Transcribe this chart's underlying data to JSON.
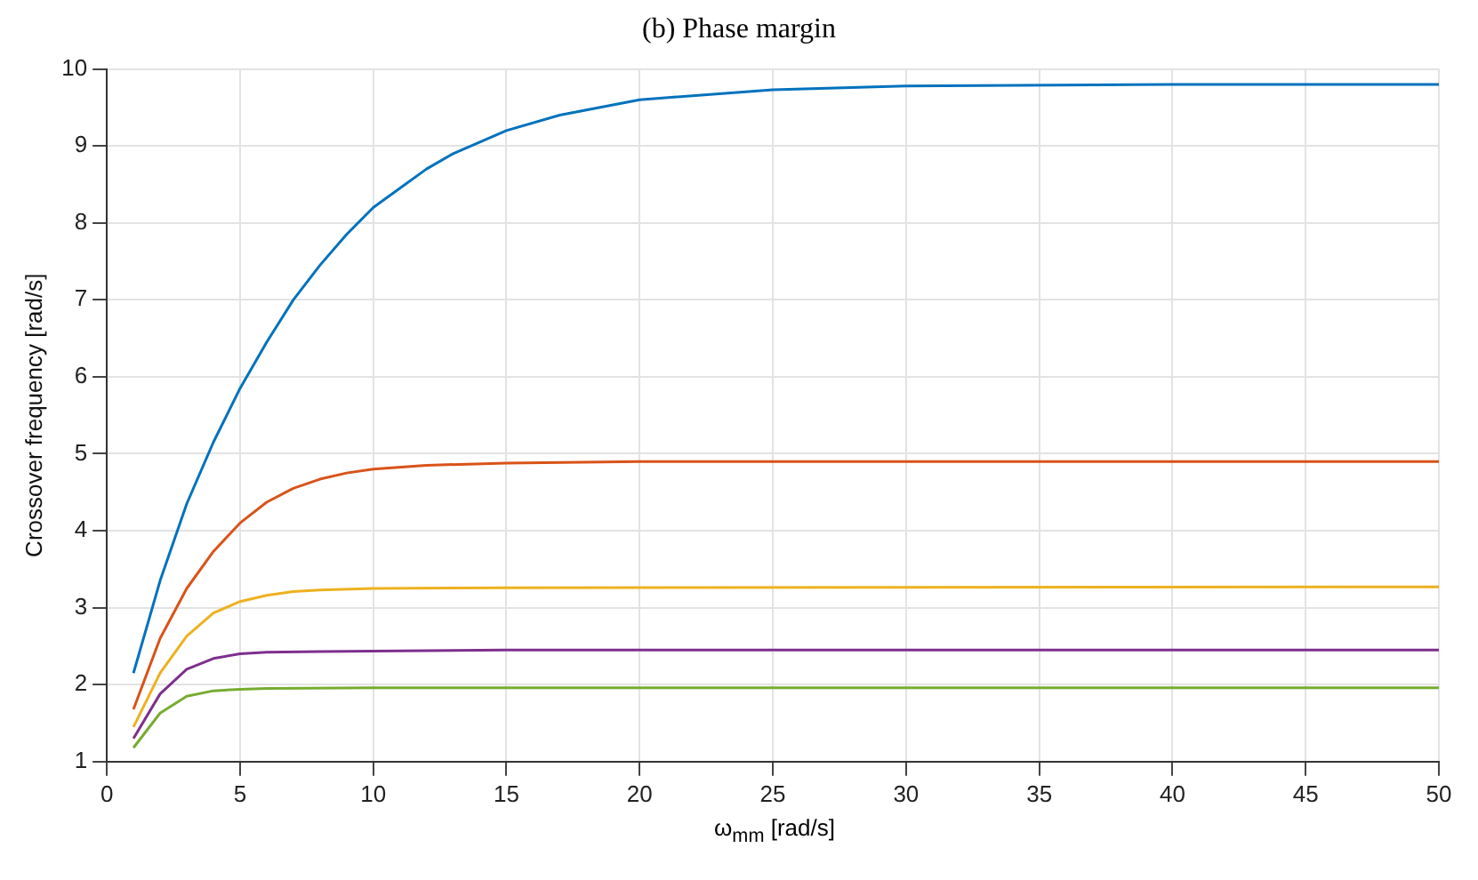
{
  "chart_data": {
    "type": "line",
    "title": "(b) Phase margin",
    "xlabel": "ω$_{mm}$ [rad/s]",
    "ylabel": "Crossover frequency [rad/s]",
    "series": [
      {
        "color": "#0072bd",
        "x": [
          1,
          2,
          3,
          4,
          5,
          6,
          7,
          8,
          9,
          10,
          11,
          12,
          13,
          14,
          15,
          17,
          20,
          25,
          30,
          40,
          50
        ],
        "values": [
          2.15,
          3.35,
          4.35,
          5.15,
          5.85,
          6.45,
          7.0,
          7.45,
          7.85,
          8.2,
          8.45,
          8.7,
          8.9,
          9.05,
          9.2,
          9.4,
          9.6,
          9.73,
          9.78,
          9.8,
          9.8
        ]
      },
      {
        "color": "#d95319",
        "x": [
          1,
          2,
          3,
          4,
          5,
          6,
          7,
          8,
          9,
          10,
          12,
          15,
          20,
          50
        ],
        "values": [
          1.68,
          2.6,
          3.25,
          3.73,
          4.1,
          4.37,
          4.55,
          4.67,
          4.75,
          4.8,
          4.85,
          4.88,
          4.9,
          4.9
        ]
      },
      {
        "color": "#edb120",
        "x": [
          1,
          2,
          3,
          4,
          5,
          6,
          7,
          8,
          10,
          15,
          50
        ],
        "values": [
          1.45,
          2.15,
          2.63,
          2.93,
          3.08,
          3.16,
          3.21,
          3.23,
          3.25,
          3.26,
          3.27
        ]
      },
      {
        "color": "#7e2f8e",
        "x": [
          1,
          2,
          3,
          4,
          5,
          6,
          8,
          15,
          50
        ],
        "values": [
          1.3,
          1.88,
          2.2,
          2.34,
          2.4,
          2.42,
          2.43,
          2.45,
          2.45
        ]
      },
      {
        "color": "#77ac30",
        "x": [
          1,
          2,
          3,
          4,
          5,
          6,
          10,
          50
        ],
        "values": [
          1.18,
          1.63,
          1.85,
          1.92,
          1.94,
          1.95,
          1.96,
          1.96
        ]
      }
    ],
    "xlim": [
      0,
      50
    ],
    "xticks": [
      0,
      5,
      10,
      15,
      20,
      25,
      30,
      35,
      40,
      45,
      50
    ],
    "ylim": [
      1,
      10
    ],
    "yticks": [
      1,
      2,
      3,
      4,
      5,
      6,
      7,
      8,
      9,
      10
    ],
    "grid": true,
    "legend": false,
    "marker": "none",
    "line_style": "solid"
  }
}
